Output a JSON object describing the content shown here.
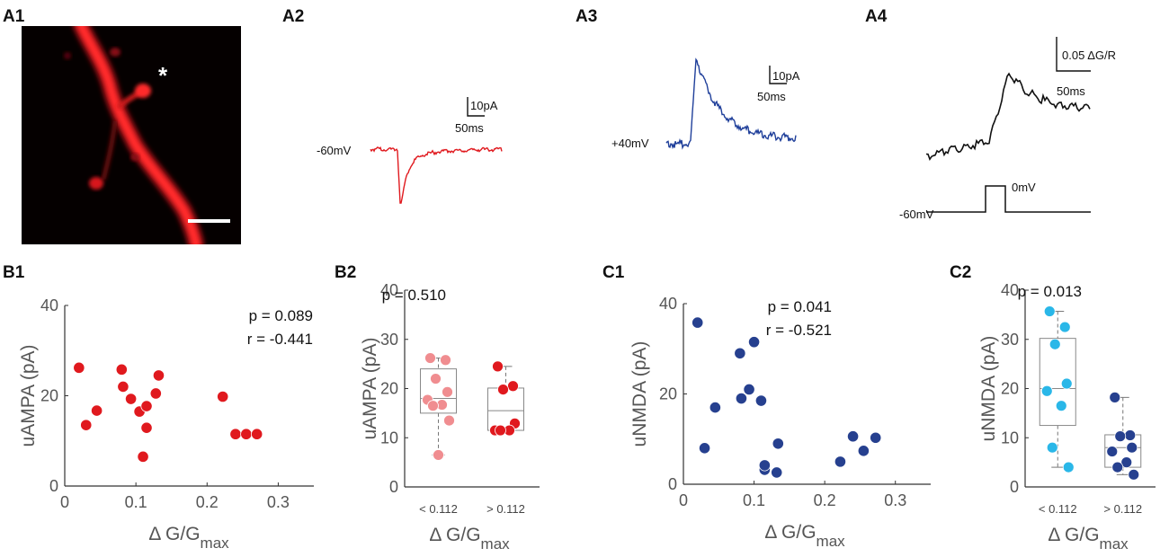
{
  "panels": {
    "a1": {
      "label": "A1",
      "asterisk": "*"
    },
    "a2": {
      "label": "A2",
      "holding": "-60mV",
      "scale_y": "10pA",
      "scale_x": "50ms",
      "color": "#e0191e"
    },
    "a3": {
      "label": "A3",
      "holding": "+40mV",
      "scale_y": "10pA",
      "scale_x": "50ms",
      "color": "#1f3f9a"
    },
    "a4": {
      "label": "A4",
      "scale_y": "0.05 ΔG/R",
      "scale_x": "50ms",
      "step_low": "-60mV",
      "step_high": "0mV",
      "color": "#111111"
    },
    "b1": {
      "label": "B1"
    },
    "b2": {
      "label": "B2"
    },
    "c1": {
      "label": "C1"
    },
    "c2": {
      "label": "C2"
    }
  },
  "chart_data": [
    {
      "id": "B1",
      "type": "scatter",
      "x": [
        0.02,
        0.03,
        0.045,
        0.08,
        0.082,
        0.093,
        0.105,
        0.11,
        0.115,
        0.115,
        0.128,
        0.132,
        0.222,
        0.24,
        0.255,
        0.27
      ],
      "y": [
        26.2,
        13.5,
        16.7,
        25.8,
        22.0,
        19.3,
        16.5,
        6.5,
        12.9,
        17.7,
        20.5,
        24.5,
        19.8,
        11.5,
        11.5,
        11.5
      ],
      "xlim": [
        0,
        0.35
      ],
      "ylim": [
        0,
        40
      ],
      "xticks": [
        "0",
        "0.1",
        "0.2",
        "0.3"
      ],
      "yticks": [
        "0",
        "20",
        "40"
      ],
      "xlabel_main": "Δ G/G",
      "xlabel_sub": "max",
      "ylabel": "uAMPA (pA)",
      "stats": [
        "p = 0.089",
        "r = -0.441"
      ],
      "color": "#e0191e"
    },
    {
      "id": "B2",
      "type": "box",
      "categories": [
        "< 0.112",
        "> 0.112"
      ],
      "groups": [
        {
          "values": [
            26.2,
            25.8,
            22.0,
            19.3,
            17.7,
            16.7,
            16.5,
            13.5,
            6.5
          ],
          "q1": 15.0,
          "median": 18.0,
          "q3": 24.0,
          "whisker_low": 6.5,
          "whisker_high": 26.2,
          "color": "#f08d90"
        },
        {
          "values": [
            24.5,
            20.5,
            19.8,
            12.9,
            11.5,
            11.5,
            11.5
          ],
          "q1": 11.5,
          "median": 15.5,
          "q3": 20.1,
          "whisker_low": 11.5,
          "whisker_high": 24.5,
          "color": "#e0191e"
        }
      ],
      "ylim": [
        0,
        40
      ],
      "yticks": [
        "0",
        "10",
        "20",
        "30",
        "40"
      ],
      "xlabel_main": "Δ G/G",
      "xlabel_sub": "max",
      "ylabel": "uAMPA (pA)",
      "stats": [
        "p = 0.510"
      ]
    },
    {
      "id": "C1",
      "type": "scatter",
      "x": [
        0.02,
        0.03,
        0.045,
        0.08,
        0.082,
        0.093,
        0.1,
        0.11,
        0.115,
        0.115,
        0.132,
        0.134,
        0.222,
        0.24,
        0.255,
        0.272
      ],
      "y": [
        35.8,
        8.0,
        17.0,
        29.0,
        19.0,
        21.0,
        31.5,
        18.5,
        3.2,
        4.2,
        2.6,
        9.0,
        5.0,
        10.6,
        7.4,
        10.3
      ],
      "xlim": [
        0,
        0.35
      ],
      "ylim": [
        0,
        40
      ],
      "xticks": [
        "0",
        "0.1",
        "0.2",
        "0.3"
      ],
      "yticks": [
        "0",
        "20",
        "40"
      ],
      "xlabel_main": "Δ G/G",
      "xlabel_sub": "max",
      "ylabel": "uNMDA (pA)",
      "stats": [
        "p = 0.041",
        "r = -0.521"
      ],
      "color": "#26408f"
    },
    {
      "id": "C2",
      "type": "box",
      "categories": [
        "< 0.112",
        "> 0.112"
      ],
      "groups": [
        {
          "values": [
            35.7,
            32.5,
            29.0,
            21.0,
            19.5,
            16.5,
            8.0,
            4.0
          ],
          "q1": 12.5,
          "median": 20.0,
          "q3": 30.2,
          "whisker_low": 4.0,
          "whisker_high": 35.7,
          "color": "#2ab7e8"
        },
        {
          "values": [
            18.2,
            10.5,
            10.3,
            8.0,
            7.2,
            5.0,
            4.0,
            2.5
          ],
          "q1": 4.0,
          "median": 8.0,
          "q3": 10.6,
          "whisker_low": 2.5,
          "whisker_high": 18.2,
          "color": "#26408f"
        }
      ],
      "ylim": [
        0,
        40
      ],
      "yticks": [
        "0",
        "10",
        "20",
        "30",
        "40"
      ],
      "xlabel_main": "Δ G/G",
      "xlabel_sub": "max",
      "ylabel": "uNMDA (pA)",
      "stats": [
        "p = 0.013"
      ]
    }
  ]
}
